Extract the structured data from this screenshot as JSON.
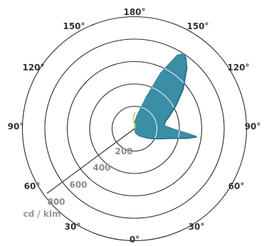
{
  "chart_data": {
    "type": "polar",
    "unit": "cd / klm",
    "ring_values": [
      200,
      400,
      600,
      800,
      1000
    ],
    "ring_labels": [
      "200",
      "400",
      "600",
      "800"
    ],
    "angle_labels": {
      "top": "180°",
      "upper_left": "150°",
      "upper_right": "150°",
      "mid_upper_left": "120°",
      "mid_upper_right": "120°",
      "left": "90°",
      "right": "90°",
      "lower_left": "60°",
      "lower_right": "60°",
      "bottom_left": "30°",
      "bottom_right": "30°",
      "bottom": "0°"
    },
    "series": [
      {
        "color": "#3a8ea6",
        "curve_points": [
          [
            0,
            0
          ],
          [
            10,
            40
          ],
          [
            20,
            55
          ],
          [
            30,
            70
          ],
          [
            40,
            85
          ],
          [
            50,
            120
          ],
          [
            60,
            170
          ],
          [
            70,
            250
          ],
          [
            75,
            320
          ],
          [
            80,
            470
          ],
          [
            83,
            560
          ],
          [
            85,
            480
          ],
          [
            90,
            345
          ],
          [
            95,
            280
          ],
          [
            100,
            265
          ],
          [
            105,
            280
          ],
          [
            110,
            320
          ],
          [
            120,
            420
          ],
          [
            130,
            560
          ],
          [
            140,
            720
          ],
          [
            145,
            790
          ],
          [
            147,
            800
          ],
          [
            150,
            760
          ],
          [
            155,
            550
          ],
          [
            160,
            300
          ],
          [
            170,
            120
          ],
          [
            180,
            60
          ]
        ]
      }
    ],
    "secondary_series_color": "#c8d25a"
  },
  "colors": {
    "grid": "#2b2b2b",
    "fill": "#3a8ea6",
    "fill_shadow": "#1f6a85"
  }
}
